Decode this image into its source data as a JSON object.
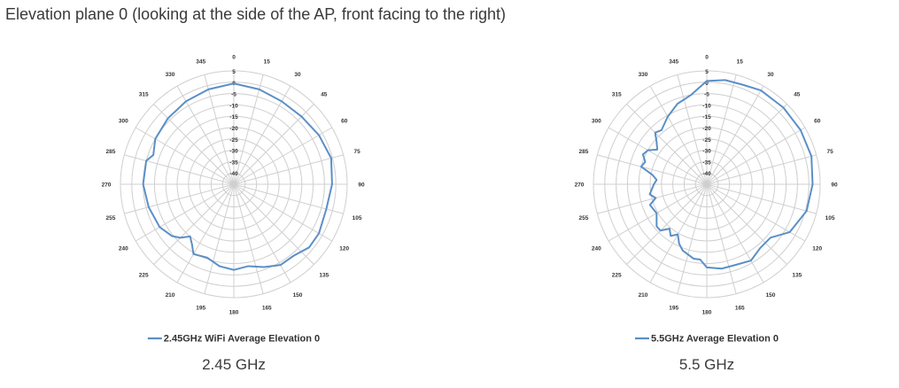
{
  "page": {
    "title": "Elevation plane 0 (looking at the side of the AP, front facing to the right)"
  },
  "captions": [
    "2.45 GHz",
    "5.5 GHz"
  ],
  "chart_data": [
    {
      "type": "polar-line",
      "angle_labels": [
        "0",
        "15",
        "30",
        "45",
        "60",
        "75",
        "90",
        "105",
        "120",
        "135",
        "150",
        "165",
        "180",
        "195",
        "210",
        "225",
        "240",
        "255",
        "270",
        "285",
        "300",
        "315",
        "330",
        "345"
      ],
      "radial_labels": [
        "5",
        "0",
        "-5",
        "-10",
        "-15",
        "-20",
        "-25",
        "-30",
        "-35",
        "-40"
      ],
      "rlim": [
        -40,
        5
      ],
      "grid": true,
      "legend_position": "bottom",
      "series": [
        {
          "name": "2.45GHz WiFi Average Elevation 0",
          "color": "#5b8fc7",
          "theta": [
            0,
            15,
            30,
            45,
            60,
            75,
            90,
            105,
            120,
            130,
            140,
            150,
            160,
            170,
            180,
            190,
            200,
            210,
            215,
            220,
            225,
            230,
            240,
            255,
            270,
            285,
            290,
            300,
            315,
            330,
            345
          ],
          "r": [
            0,
            -1,
            -2,
            -2,
            -1,
            0,
            -1,
            -2,
            -1,
            -1,
            -3,
            -3,
            -5,
            -7,
            -6,
            -7,
            -9,
            -8,
            -11,
            -13,
            -10,
            -8,
            -6,
            -5,
            -4,
            -4,
            -6,
            -4,
            -3,
            -2,
            -1
          ]
        }
      ]
    },
    {
      "type": "polar-line",
      "angle_labels": [
        "0",
        "15",
        "30",
        "45",
        "60",
        "75",
        "90",
        "105",
        "120",
        "135",
        "150",
        "165",
        "180",
        "195",
        "210",
        "225",
        "240",
        "255",
        "270",
        "285",
        "300",
        "315",
        "330",
        "345"
      ],
      "radial_labels": [
        "5",
        "0",
        "-5",
        "-10",
        "-15",
        "-20",
        "-25",
        "-30",
        "-35",
        "-40"
      ],
      "rlim": [
        -40,
        5
      ],
      "grid": true,
      "legend_position": "bottom",
      "series": [
        {
          "name": "5.5GHz Average Elevation 0",
          "color": "#5b8fc7",
          "theta": [
            0,
            10,
            20,
            30,
            45,
            60,
            75,
            90,
            105,
            120,
            130,
            140,
            150,
            160,
            170,
            180,
            185,
            190,
            200,
            205,
            210,
            215,
            220,
            225,
            230,
            240,
            250,
            255,
            260,
            270,
            275,
            280,
            285,
            290,
            295,
            300,
            305,
            310,
            315,
            320,
            330,
            340,
            350
          ],
          "r": [
            1,
            2,
            2,
            3,
            3,
            3,
            3,
            2,
            1,
            -2,
            -7,
            -7,
            -5,
            -6,
            -6,
            -7,
            -10,
            -10,
            -12,
            -14,
            -17,
            -15,
            -17,
            -14,
            -14,
            -17,
            -16,
            -19,
            -17,
            -19,
            -20,
            -18,
            -13,
            -14,
            -12,
            -13,
            -16,
            -14,
            -11,
            -12,
            -9,
            -6,
            -4
          ]
        }
      ]
    }
  ]
}
